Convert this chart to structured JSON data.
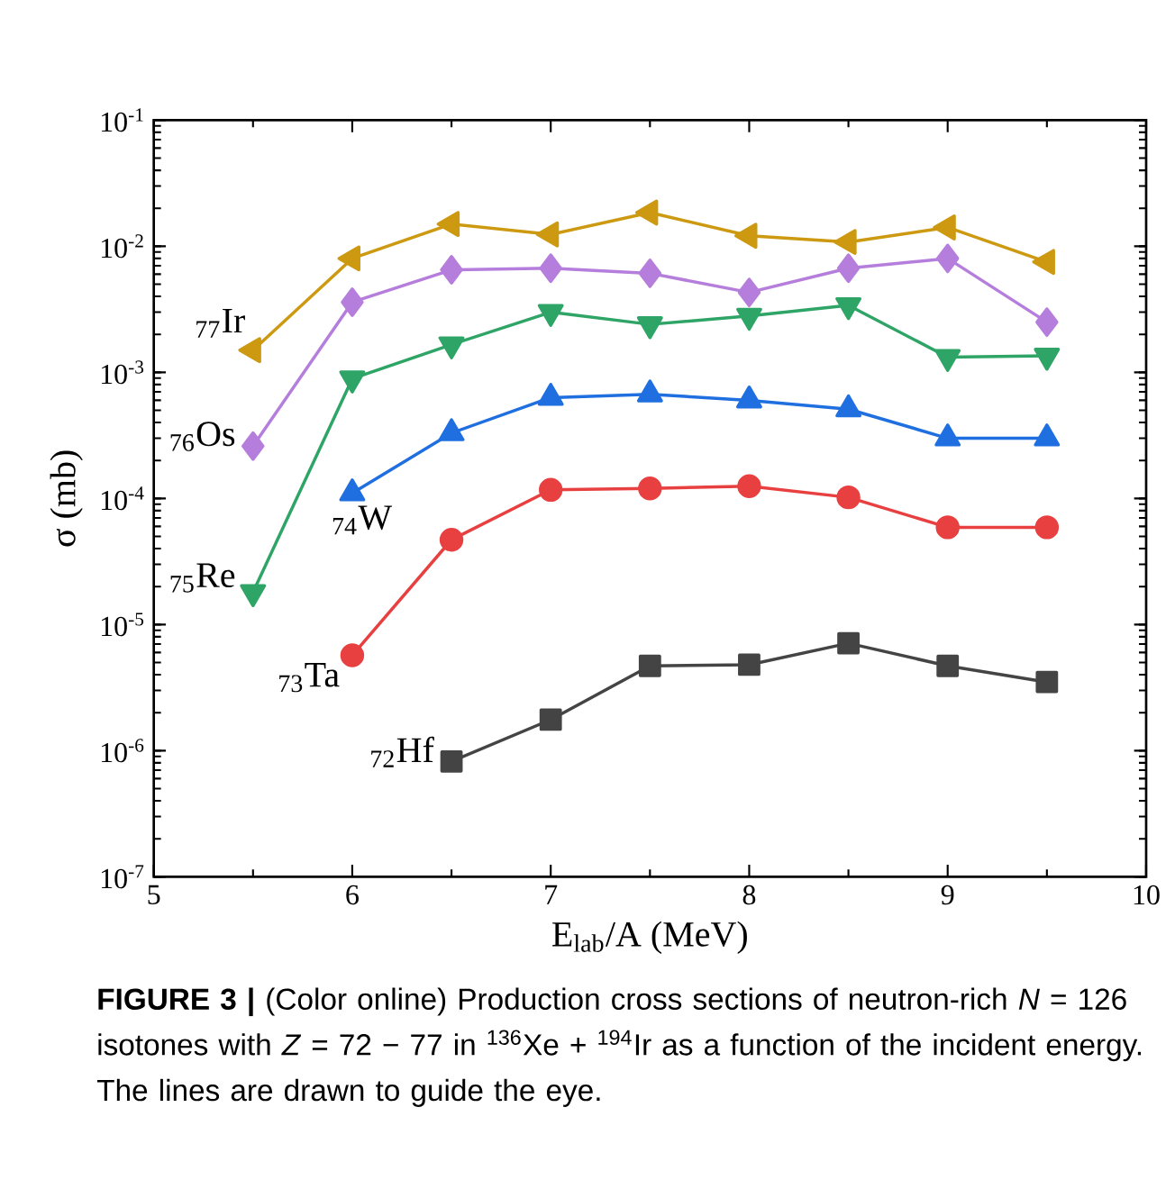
{
  "chart_data": {
    "type": "line",
    "xlabel": "E$_{lab}$/A (MeV)",
    "ylabel": "σ (mb)",
    "xlim": [
      5,
      10
    ],
    "xticks": [
      5,
      6,
      7,
      8,
      9,
      10
    ],
    "ylim": [
      1e-07,
      0.1
    ],
    "log": "y",
    "yticks": [
      {
        "value": 1e-07,
        "label": "10$^{-7}$"
      },
      {
        "value": 1e-06,
        "label": "10$^{-6}$"
      },
      {
        "value": 1e-05,
        "label": "10$^{-5}$"
      },
      {
        "value": 0.0001,
        "label": "10$^{-4}$"
      },
      {
        "value": 0.001,
        "label": "10$^{-3}$"
      },
      {
        "value": 0.01,
        "label": "10$^{-2}$"
      },
      {
        "value": 0.1,
        "label": "10$^{-1}$"
      }
    ],
    "grid": false,
    "legend": false,
    "series": [
      {
        "name": "$_{77}$Ir",
        "color": "#cc9911",
        "marker": "triangle-left",
        "x": [
          5.5,
          6,
          6.5,
          7,
          7.5,
          8,
          8.5,
          9,
          9.5
        ],
        "values": [
          0.0015,
          0.008,
          0.015,
          0.0124,
          0.0185,
          0.0121,
          0.0108,
          0.0141,
          0.0075
        ]
      },
      {
        "name": "$_{76}$Os",
        "color": "#b57edc",
        "marker": "diamond",
        "x": [
          5.5,
          6,
          6.5,
          7,
          7.5,
          8,
          8.5,
          9,
          9.5
        ],
        "values": [
          0.00026,
          0.0036,
          0.0065,
          0.0067,
          0.0061,
          0.0043,
          0.0067,
          0.008,
          0.0025
        ]
      },
      {
        "name": "$_{75}$Re",
        "color": "#2ea566",
        "marker": "triangle-down",
        "x": [
          5.5,
          6,
          6.5,
          7,
          7.5,
          8,
          8.5,
          9,
          9.5
        ],
        "values": [
          1.8e-05,
          0.00089,
          0.00166,
          0.003,
          0.0024,
          0.0028,
          0.0034,
          0.00132,
          0.00135
        ]
      },
      {
        "name": "$_{74}$W",
        "color": "#1f6fe0",
        "marker": "triangle",
        "x": [
          6,
          6.5,
          7,
          7.5,
          8,
          8.5,
          9,
          9.5
        ],
        "values": [
          0.00011,
          0.00033,
          0.00063,
          0.00067,
          0.0006,
          0.00051,
          0.0003,
          0.0003
        ]
      },
      {
        "name": "$_{73}$Ta",
        "color": "#e84040",
        "marker": "circle",
        "x": [
          6,
          6.5,
          7,
          7.5,
          8,
          8.5,
          9,
          9.5
        ],
        "values": [
          5.7e-06,
          4.7e-05,
          0.000117,
          0.00012,
          0.000125,
          0.000102,
          5.9e-05,
          5.9e-05
        ]
      },
      {
        "name": "$_{72}$Hf",
        "color": "#444444",
        "marker": "square",
        "x": [
          6.5,
          7,
          7.5,
          8,
          8.5,
          9,
          9.5
        ],
        "values": [
          8.2e-07,
          1.76e-06,
          4.7e-06,
          4.8e-06,
          7.1e-06,
          4.7e-06,
          3.5e-06
        ]
      }
    ],
    "annotations": [
      "**FIGURE 3 |** (Color online) Production cross sections of neutron-rich *N* = 126 isotones with *Z* = 72 − 77 in $^{136}$Xe + $^{194}$Ir as a function of the incident energy. The lines are drawn to guide the eye."
    ]
  }
}
